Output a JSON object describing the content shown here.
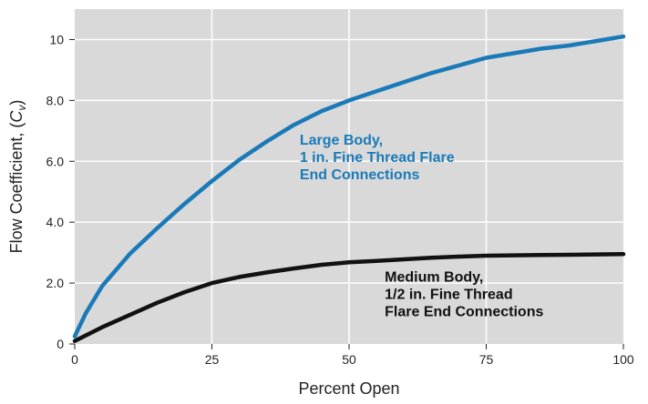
{
  "chart_data": {
    "type": "line",
    "xlabel": "Percent Open",
    "ylabel_main": "Flow Coefficient, (",
    "ylabel_var": "C",
    "ylabel_sub": "v",
    "ylabel_close": ")",
    "xlim": [
      0,
      100
    ],
    "ylim": [
      0,
      11
    ],
    "grid": true,
    "x_ticks": [
      {
        "value": 0,
        "label": "0"
      },
      {
        "value": 25,
        "label": "25"
      },
      {
        "value": 50,
        "label": "50"
      },
      {
        "value": 75,
        "label": "75"
      },
      {
        "value": 100,
        "label": "100"
      }
    ],
    "y_ticks": [
      {
        "value": 0,
        "label": "0"
      },
      {
        "value": 2,
        "label": "2.0"
      },
      {
        "value": 4,
        "label": "4.0"
      },
      {
        "value": 6,
        "label": "6.0"
      },
      {
        "value": 8,
        "label": "8.0"
      },
      {
        "value": 10,
        "label": "10"
      }
    ],
    "background_color": "#d9d9da",
    "series": [
      {
        "color": "#1a7ab8",
        "x": [
          0,
          2,
          5,
          10,
          15,
          20,
          25,
          30,
          35,
          40,
          45,
          50,
          55,
          60,
          65,
          70,
          75,
          80,
          85,
          90,
          95,
          100
        ],
        "values": [
          0.25,
          1.0,
          1.9,
          2.95,
          3.8,
          4.6,
          5.35,
          6.05,
          6.65,
          7.2,
          7.65,
          8.0,
          8.3,
          8.6,
          8.9,
          9.15,
          9.4,
          9.55,
          9.7,
          9.8,
          9.95,
          10.1
        ]
      },
      {
        "color": "#111111",
        "x": [
          0,
          5,
          10,
          15,
          20,
          25,
          30,
          35,
          40,
          45,
          50,
          55,
          60,
          65,
          70,
          75,
          80,
          85,
          90,
          95,
          100
        ],
        "values": [
          0.1,
          0.55,
          0.95,
          1.35,
          1.7,
          2.0,
          2.2,
          2.35,
          2.48,
          2.6,
          2.68,
          2.73,
          2.78,
          2.83,
          2.87,
          2.9,
          2.91,
          2.92,
          2.93,
          2.94,
          2.95
        ]
      }
    ],
    "annotations": [
      {
        "lines": [
          "Large Body,",
          "1 in. Fine Thread Flare",
          "End Connections"
        ],
        "color": "#1a7ab8",
        "x": 41,
        "y": 6.55
      },
      {
        "lines": [
          "Medium Body,",
          "1/2 in. Fine Thread",
          "Flare End Connections"
        ],
        "color": "#111111",
        "x": 56.5,
        "y": 2.05
      }
    ]
  }
}
